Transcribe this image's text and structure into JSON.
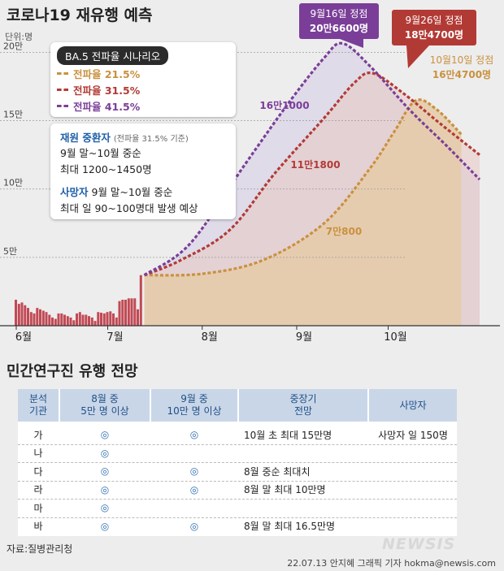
{
  "title": "코로나19 재유행 예측",
  "unit_label": "단위:명",
  "chart_data": {
    "type": "area",
    "title": "코로나19 재유행 예측",
    "y_unit": "명",
    "ylim": [
      0,
      230000
    ],
    "yticks": [
      {
        "value": 50000,
        "label": "5만"
      },
      {
        "value": 100000,
        "label": "10만"
      },
      {
        "value": 150000,
        "label": "15만"
      },
      {
        "value": 200000,
        "label": "20만"
      }
    ],
    "xlim": [
      "2022-06-01",
      "2022-10-31"
    ],
    "xticks": [
      {
        "date": "2022-06-01",
        "label": "6월"
      },
      {
        "date": "2022-07-01",
        "label": "7월"
      },
      {
        "date": "2022-08-01",
        "label": "8월"
      },
      {
        "date": "2022-09-01",
        "label": "9월"
      },
      {
        "date": "2022-10-01",
        "label": "10월"
      }
    ],
    "observed_bars": [
      {
        "date": "2022-06-01",
        "value": 19000
      },
      {
        "date": "2022-06-02",
        "value": 16000
      },
      {
        "date": "2022-06-03",
        "value": 17000
      },
      {
        "date": "2022-06-04",
        "value": 15000
      },
      {
        "date": "2022-06-05",
        "value": 13000
      },
      {
        "date": "2022-06-06",
        "value": 10000
      },
      {
        "date": "2022-06-07",
        "value": 9000
      },
      {
        "date": "2022-06-08",
        "value": 13000
      },
      {
        "date": "2022-06-09",
        "value": 12000
      },
      {
        "date": "2022-06-10",
        "value": 11000
      },
      {
        "date": "2022-06-11",
        "value": 10000
      },
      {
        "date": "2022-06-12",
        "value": 8000
      },
      {
        "date": "2022-06-13",
        "value": 6000
      },
      {
        "date": "2022-06-14",
        "value": 5000
      },
      {
        "date": "2022-06-15",
        "value": 9000
      },
      {
        "date": "2022-06-16",
        "value": 9000
      },
      {
        "date": "2022-06-17",
        "value": 8000
      },
      {
        "date": "2022-06-18",
        "value": 7000
      },
      {
        "date": "2022-06-19",
        "value": 6000
      },
      {
        "date": "2022-06-20",
        "value": 4000
      },
      {
        "date": "2022-06-21",
        "value": 9000
      },
      {
        "date": "2022-06-22",
        "value": 10000
      },
      {
        "date": "2022-06-23",
        "value": 8000
      },
      {
        "date": "2022-06-24",
        "value": 8000
      },
      {
        "date": "2022-06-25",
        "value": 7000
      },
      {
        "date": "2022-06-26",
        "value": 6000
      },
      {
        "date": "2022-06-27",
        "value": 3500
      },
      {
        "date": "2022-06-28",
        "value": 10000
      },
      {
        "date": "2022-06-29",
        "value": 9500
      },
      {
        "date": "2022-06-30",
        "value": 9000
      },
      {
        "date": "2022-07-01",
        "value": 10000
      },
      {
        "date": "2022-07-02",
        "value": 10500
      },
      {
        "date": "2022-07-03",
        "value": 9000
      },
      {
        "date": "2022-07-04",
        "value": 6000
      },
      {
        "date": "2022-07-05",
        "value": 18000
      },
      {
        "date": "2022-07-06",
        "value": 19000
      },
      {
        "date": "2022-07-07",
        "value": 19000
      },
      {
        "date": "2022-07-08",
        "value": 20000
      },
      {
        "date": "2022-07-09",
        "value": 20000
      },
      {
        "date": "2022-07-10",
        "value": 20000
      },
      {
        "date": "2022-07-11",
        "value": 12000
      },
      {
        "date": "2022-07-12",
        "value": 37000
      }
    ],
    "series": [
      {
        "name": "전파율 21.5%",
        "color": "#c9913f",
        "points": [
          {
            "date": "2022-07-13",
            "value": 37000
          },
          {
            "date": "2022-08-01",
            "value": 38000
          },
          {
            "date": "2022-08-21",
            "value": 48000
          },
          {
            "date": "2022-09-10",
            "value": 75000
          },
          {
            "date": "2022-09-25",
            "value": 115000
          },
          {
            "date": "2022-10-03",
            "value": 142000
          },
          {
            "date": "2022-10-10",
            "value": 164700
          },
          {
            "date": "2022-10-17",
            "value": 158000
          },
          {
            "date": "2022-10-25",
            "value": 140000
          }
        ]
      },
      {
        "name": "전파율 31.5%",
        "color": "#b23a35",
        "points": [
          {
            "date": "2022-07-13",
            "value": 37000
          },
          {
            "date": "2022-07-25",
            "value": 48000
          },
          {
            "date": "2022-08-10",
            "value": 70000
          },
          {
            "date": "2022-08-25",
            "value": 112000
          },
          {
            "date": "2022-09-10",
            "value": 152000
          },
          {
            "date": "2022-09-20",
            "value": 178000
          },
          {
            "date": "2022-09-26",
            "value": 184700
          },
          {
            "date": "2022-10-06",
            "value": 170000
          },
          {
            "date": "2022-10-18",
            "value": 148000
          },
          {
            "date": "2022-10-31",
            "value": 125000
          }
        ]
      },
      {
        "name": "전파율 41.5%",
        "color": "#7a3e98",
        "points": [
          {
            "date": "2022-07-13",
            "value": 37000
          },
          {
            "date": "2022-07-28",
            "value": 60000
          },
          {
            "date": "2022-08-15",
            "value": 118000
          },
          {
            "date": "2022-08-30",
            "value": 165000
          },
          {
            "date": "2022-09-10",
            "value": 196000
          },
          {
            "date": "2022-09-16",
            "value": 206600
          },
          {
            "date": "2022-09-25",
            "value": 190000
          },
          {
            "date": "2022-10-08",
            "value": 158000
          },
          {
            "date": "2022-10-20",
            "value": 132000
          },
          {
            "date": "2022-10-31",
            "value": 107000
          }
        ]
      }
    ],
    "point_labels": [
      {
        "series": 2,
        "text": "16만1000"
      },
      {
        "series": 1,
        "text": "11만1800"
      },
      {
        "series": 0,
        "text": "7만800"
      }
    ],
    "peak_callouts": [
      {
        "series": 2,
        "date_text": "9월16일 정점",
        "value_text": "20만6600명"
      },
      {
        "series": 1,
        "date_text": "9월26일 정점",
        "value_text": "18만4700명"
      },
      {
        "series": 0,
        "date_text": "10월10일 정점",
        "value_text": "16만4700명"
      }
    ],
    "grid": true,
    "legend_position": "top-left"
  },
  "legend": {
    "heading": "BA.5 전파율 시나리오",
    "items": [
      "전파율 21.5%",
      "전파율 31.5%",
      "전파율 41.5%"
    ]
  },
  "info": {
    "severe_label": "재원 중환자",
    "severe_note": "(전파율 31.5% 기준)",
    "severe_line1": "9월 말~10월 중순",
    "severe_line2": "최대 1200~1450명",
    "death_label": "사망자",
    "death_line1": "9월 말~10월 중순",
    "death_line2": "최대 일 90~100명대 발생 예상"
  },
  "table": {
    "title": "민간연구진 유행 전망",
    "headers": [
      "분석\n기관",
      "8월 중\n5만 명 이상",
      "9월 중\n10만 명 이상",
      "중장기\n전망",
      "사망자"
    ],
    "rows": [
      [
        "가",
        "◎",
        "◎",
        "10월 초 최대 15만명",
        "사망자 일 150명"
      ],
      [
        "나",
        "◎",
        "",
        "",
        ""
      ],
      [
        "다",
        "◎",
        "◎",
        "8월 중순 최대치",
        ""
      ],
      [
        "라",
        "◎",
        "◎",
        "8월 말 최대 10만명",
        ""
      ],
      [
        "마",
        "◎",
        "",
        "",
        ""
      ],
      [
        "바",
        "◎",
        "◎",
        "8월 말 최대 16.5만명",
        ""
      ]
    ]
  },
  "source": "자료:질병관리청",
  "credit": "22.07.13 안지혜 그래픽 기자 hokma@newsis.com",
  "brand": "NEWSIS"
}
